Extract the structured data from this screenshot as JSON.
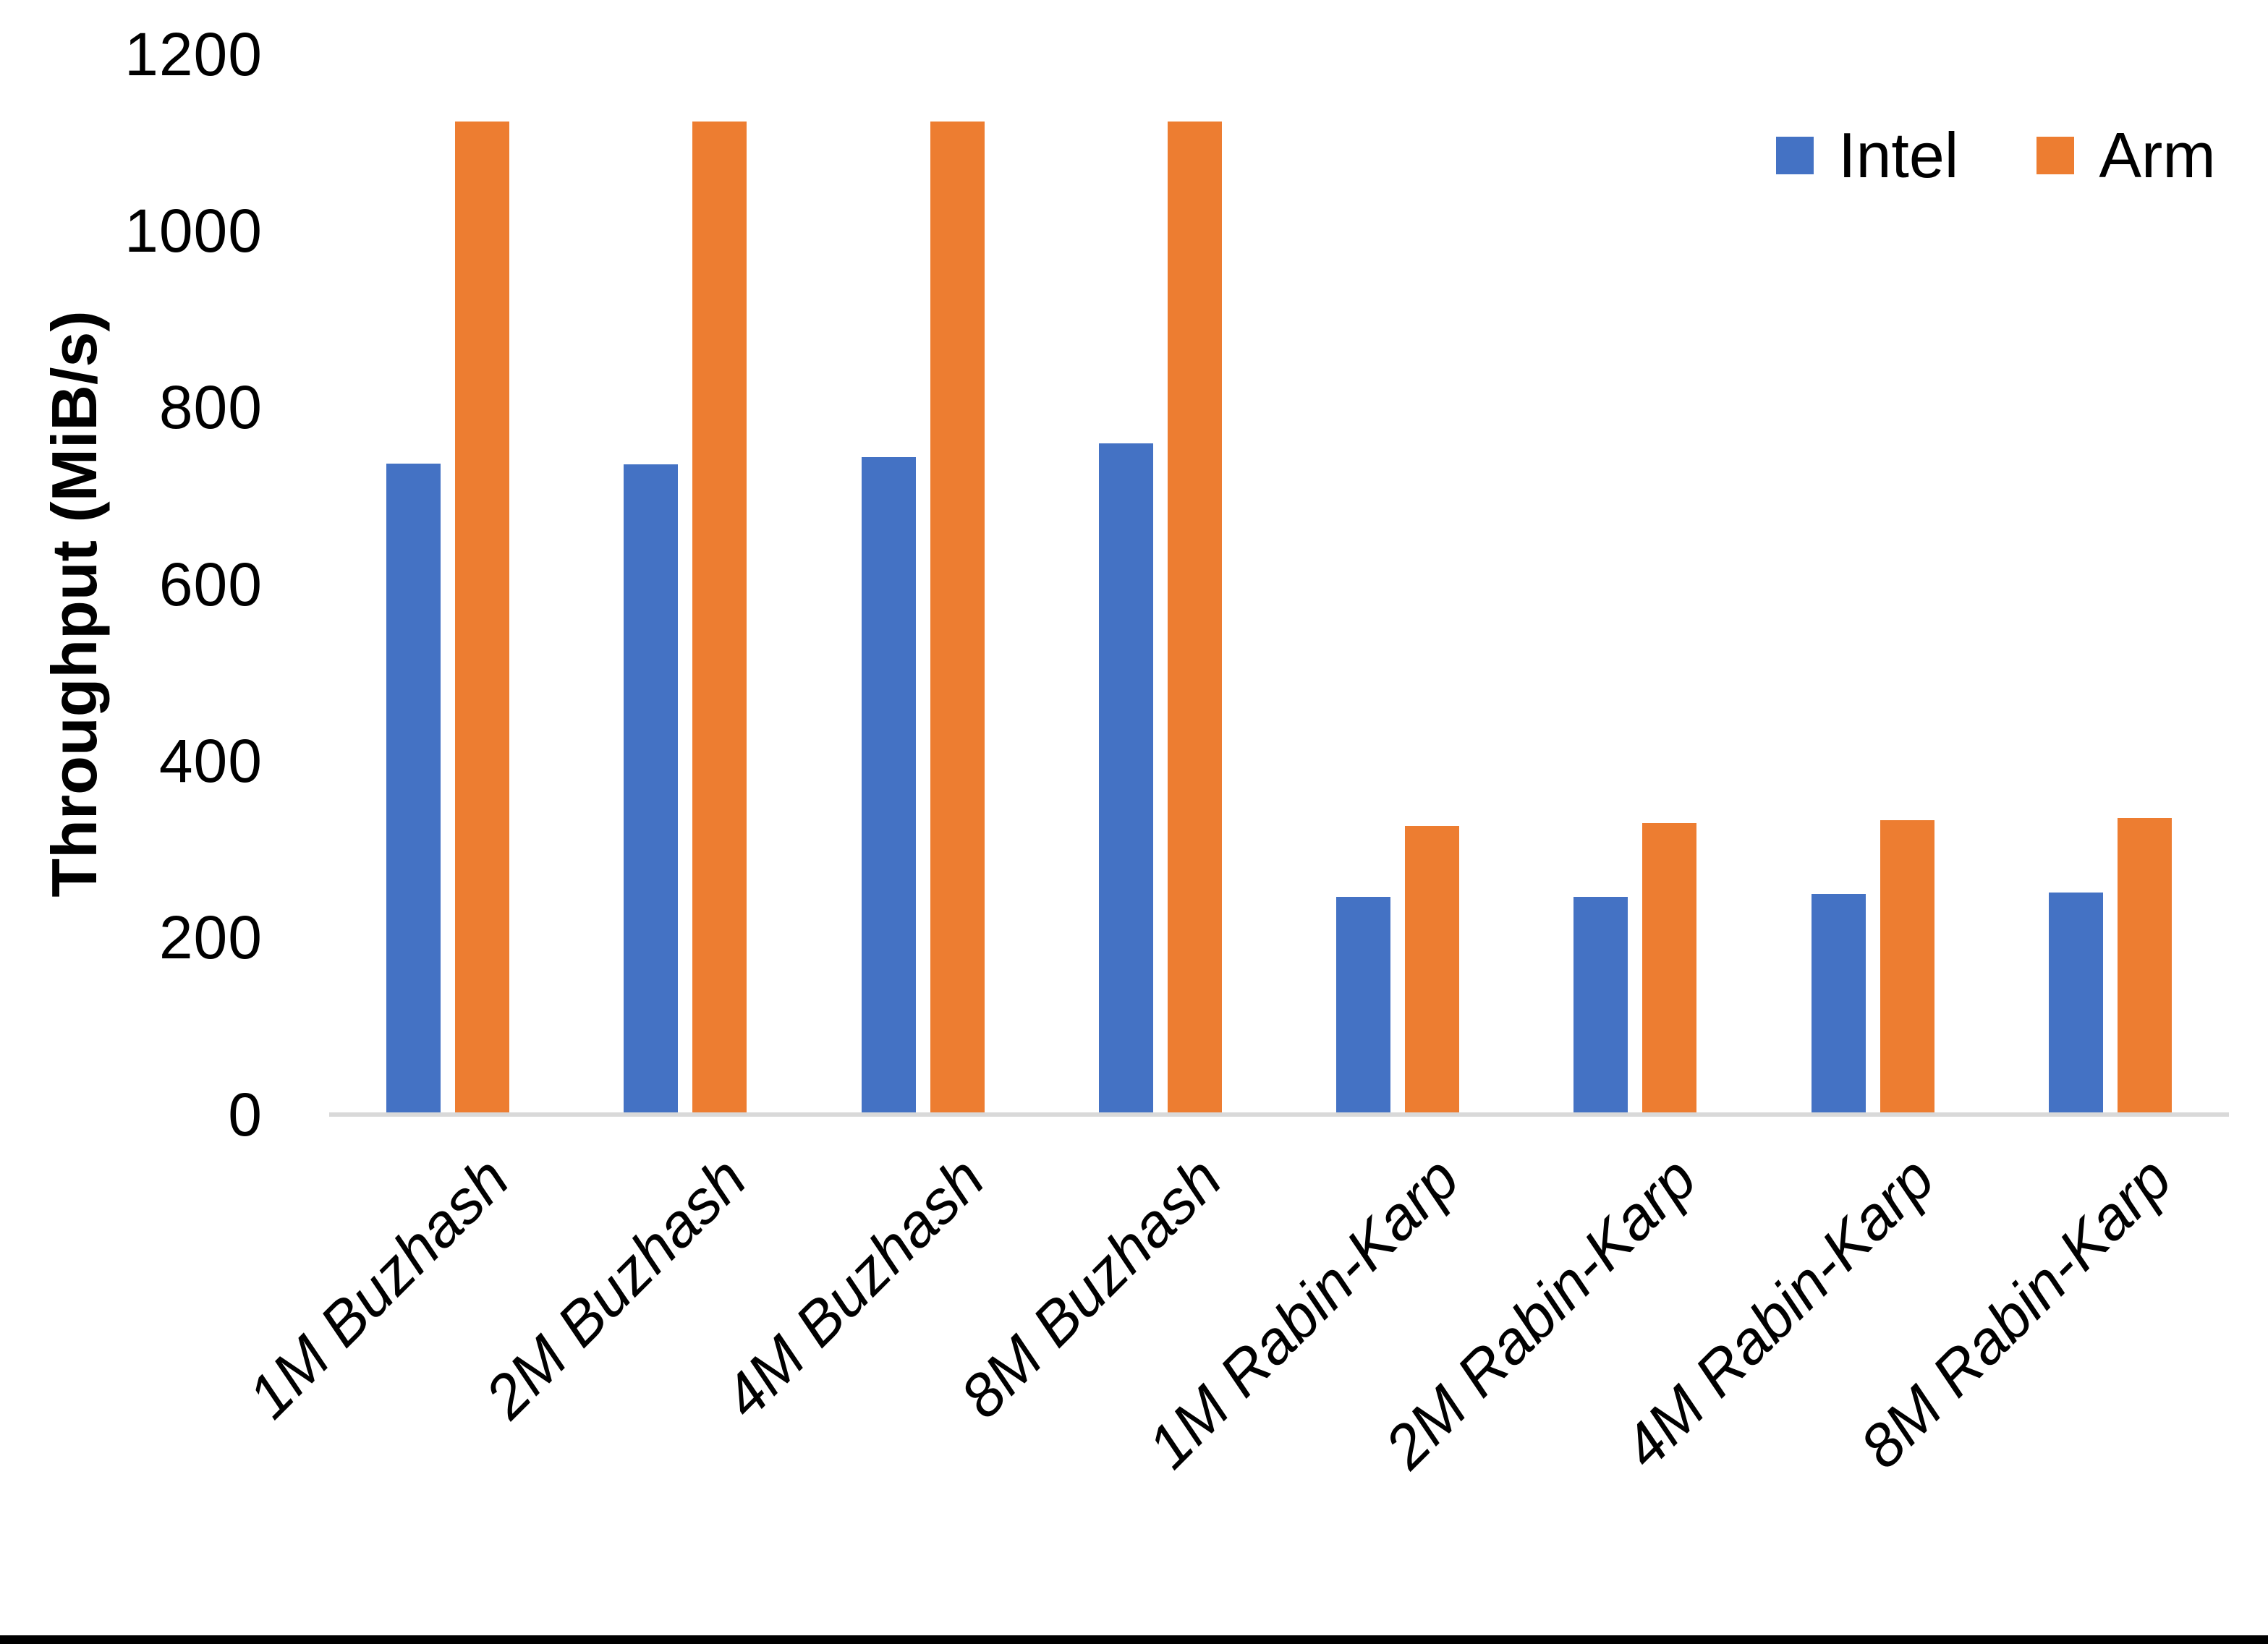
{
  "chart_data": {
    "type": "bar",
    "title": "",
    "xlabel": "",
    "ylabel": "Throughput (MiB/s)",
    "ylim": [
      0,
      1200
    ],
    "y_ticks": [
      0,
      200,
      400,
      600,
      800,
      1000,
      1200
    ],
    "grid": false,
    "legend_position": "top-right",
    "categories": [
      "1M Buzhash",
      "2M Buzhash",
      "4M Buzhash",
      "8M Buzhash",
      "1M Rabin-Karp",
      "2M Rabin-Karp",
      "4M Rabin-Karp",
      "8M Rabin-Karp"
    ],
    "series": [
      {
        "name": "Intel",
        "color": "#4472C4",
        "values": [
          737,
          736,
          744,
          760,
          246,
          246,
          250,
          251
        ]
      },
      {
        "name": "Arm",
        "color": "#ED7D31",
        "values": [
          1124,
          1124,
          1124,
          1124,
          327,
          330,
          333,
          336
        ]
      }
    ]
  },
  "colors": {
    "axis_line": "#d9d9d9",
    "text": "#000000",
    "background": "#ffffff",
    "bottom_border": "#000000"
  }
}
